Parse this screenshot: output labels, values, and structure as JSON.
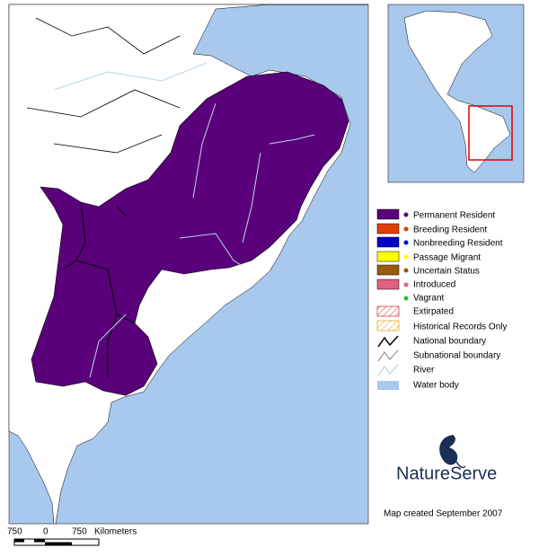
{
  "legend": {
    "items": [
      "Permanent Resident",
      "Breeding Resident",
      "Nonbreeding Resident",
      "Passage Migrant",
      "Uncertain Status",
      "Introduced",
      "Vagrant",
      "Extirpated",
      "Historical Records Only",
      "National boundary",
      "Subnational boundary",
      "River",
      "Water body"
    ]
  },
  "scale": {
    "labels": [
      "750",
      "0",
      "750"
    ],
    "unit": "Kilometers"
  },
  "logo": "NatureServe",
  "credit": "Map created September 2007"
}
